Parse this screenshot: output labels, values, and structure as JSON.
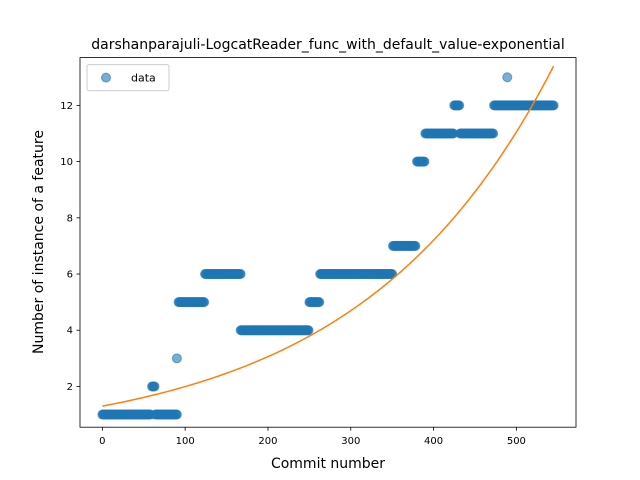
{
  "chart_data": {
    "type": "scatter",
    "title": "darshanparajuli-LogcatReader_func_with_default_value-exponential",
    "xlabel": "Commit number",
    "ylabel": "Number of instance of a feature",
    "xlim": [
      -27,
      572
    ],
    "ylim": [
      0.55,
      13.7
    ],
    "xticks": [
      0,
      100,
      200,
      300,
      400,
      500
    ],
    "yticks": [
      2,
      4,
      6,
      8,
      10,
      12
    ],
    "grid": false,
    "legend": {
      "placement": "top-left",
      "entries": [
        "data"
      ]
    },
    "colors": {
      "data": "#1f77b4",
      "fit": "#ff7f0e"
    },
    "series": [
      {
        "name": "data",
        "kind": "scatter",
        "runs": [
          {
            "x_start": 0,
            "x_end": 58,
            "y": 1
          },
          {
            "x_start": 60,
            "x_end": 63,
            "y": 2
          },
          {
            "x_start": 64,
            "x_end": 90,
            "y": 1
          },
          {
            "x_start": 90,
            "x_end": 90,
            "y": 3
          },
          {
            "x_start": 92,
            "x_end": 123,
            "y": 5
          },
          {
            "x_start": 124,
            "x_end": 167,
            "y": 6
          },
          {
            "x_start": 167,
            "x_end": 249,
            "y": 4
          },
          {
            "x_start": 250,
            "x_end": 262,
            "y": 5
          },
          {
            "x_start": 263,
            "x_end": 350,
            "y": 6
          },
          {
            "x_start": 351,
            "x_end": 378,
            "y": 7
          },
          {
            "x_start": 380,
            "x_end": 389,
            "y": 10
          },
          {
            "x_start": 390,
            "x_end": 424,
            "y": 11
          },
          {
            "x_start": 425,
            "x_end": 431,
            "y": 12
          },
          {
            "x_start": 432,
            "x_end": 472,
            "y": 11
          },
          {
            "x_start": 473,
            "x_end": 488,
            "y": 12
          },
          {
            "x_start": 489,
            "x_end": 489,
            "y": 13
          },
          {
            "x_start": 490,
            "x_end": 545,
            "y": 12
          }
        ]
      },
      {
        "kind": "line",
        "x_range": [
          0,
          545
        ],
        "y_start": 1.3,
        "y_end": 13.4
      }
    ]
  }
}
